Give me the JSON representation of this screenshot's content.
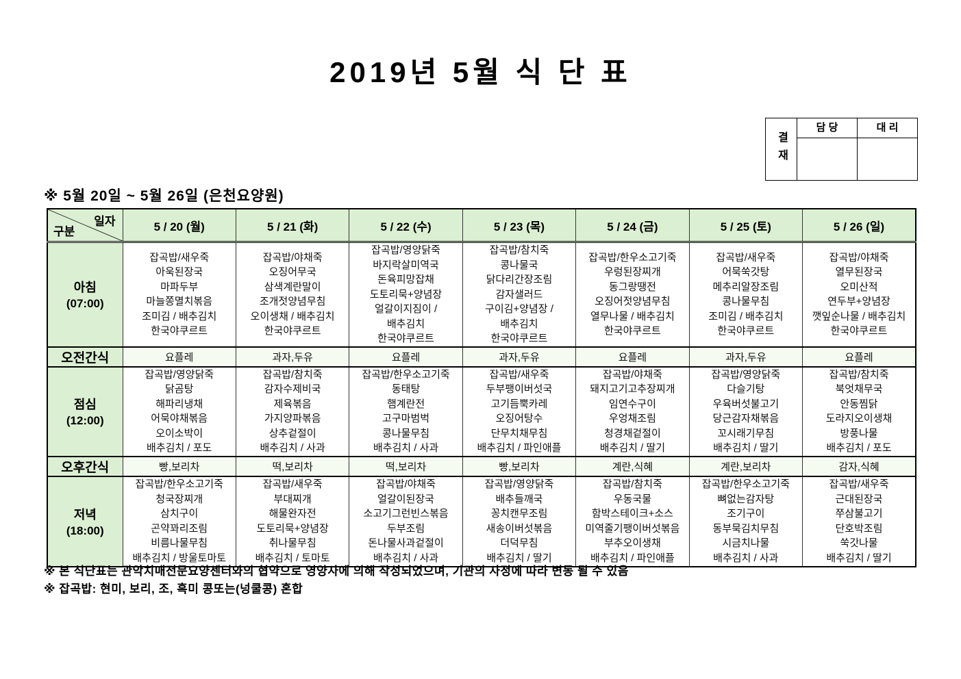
{
  "title": "2019년 5월 식 단 표",
  "approval": {
    "label": "결재",
    "col1": "담 당",
    "col2": "대 리"
  },
  "subtitle": "※ 5월 20일 ~ 5월 26일 (은천요양원)",
  "table": {
    "corner": {
      "top": "일자",
      "bottom": "구분"
    },
    "days": [
      "5 / 20 (월)",
      "5 / 21 (화)",
      "5 / 22 (수)",
      "5 / 23 (목)",
      "5 / 24 (금)",
      "5 / 25 (토)",
      "5 / 26 (일)"
    ],
    "rows": [
      {
        "id": "breakfast",
        "label": "아침",
        "time": "(07:00)",
        "type": "meal",
        "cells": [
          [
            "잡곡밥/새우죽",
            "아욱된장국",
            "마파두부",
            "마늘쫑멸치볶음",
            "조미김 / 배추김치",
            "한국야쿠르트"
          ],
          [
            "잡곡밥/야채죽",
            "오징어무국",
            "삼색계란말이",
            "조개젓양념무침",
            "오이생채 / 배추김치",
            "한국야쿠르트"
          ],
          [
            "잡곡밥/영양닭죽",
            "바지락살미역국",
            "돈육피망잡채",
            "도토리묵+양념장",
            "얼갈이지짐이 /",
            "배추김치",
            "한국야쿠르트"
          ],
          [
            "잡곡밥/참치죽",
            "콩나물국",
            "닭다리간장조림",
            "감자샐러드",
            "구이김+양념장 /",
            "배추김치",
            "한국야쿠르트"
          ],
          [
            "잡곡밥/한우소고기죽",
            "우렁된장찌개",
            "동그랑땡전",
            "오징어젓양념무침",
            "열무나물 / 배추김치",
            "한국야쿠르트"
          ],
          [
            "잡곡밥/새우죽",
            "어묵쑥갓탕",
            "메추리알장조림",
            "콩나물무침",
            "조미김 / 배추김치",
            "한국야쿠르트"
          ],
          [
            "잡곡밥/야채죽",
            "열무된장국",
            "오미산적",
            "연두부+양념장",
            "깻잎순나물 / 배추김치",
            "한국야쿠르트"
          ]
        ]
      },
      {
        "id": "am-snack",
        "label": "오전간식",
        "type": "snack",
        "cells": [
          "요플레",
          "과자,두유",
          "요플레",
          "과자,두유",
          "요플레",
          "과자,두유",
          "요플레"
        ]
      },
      {
        "id": "lunch",
        "label": "점심",
        "time": "(12:00)",
        "type": "meal",
        "cells": [
          [
            "잡곡밥/영양닭죽",
            "닭곰탕",
            "해파리냉채",
            "어묵야채볶음",
            "오이소박이",
            "배추김치 / 포도"
          ],
          [
            "잡곡밥/참치죽",
            "감자수제비국",
            "제육볶음",
            "가지양파볶음",
            "상추겉절이",
            "배추김치 / 사과"
          ],
          [
            "잡곡밥/한우소고기죽",
            "동태탕",
            "햄계란전",
            "고구마범벅",
            "콩나물무침",
            "배추김치 / 사과"
          ],
          [
            "잡곡밥/새우죽",
            "두부팽이버섯국",
            "고기듬뿍카레",
            "오징어탕수",
            "단무치채무침",
            "배추김치 / 파인애플"
          ],
          [
            "잡곡밥/야채죽",
            "돼지고기고추장찌개",
            "임연수구이",
            "우엉채조림",
            "청경채겉절이",
            "배추김치 / 딸기"
          ],
          [
            "잡곡밥/영양닭죽",
            "다슬기탕",
            "우육버섯불고기",
            "당근감자채볶음",
            "꼬시래기무침",
            "배추김치 / 딸기"
          ],
          [
            "잡곡밥/참치죽",
            "북엇채무국",
            "안동찜닭",
            "도라지오이생채",
            "방풍나물",
            "배추김치 / 포도"
          ]
        ]
      },
      {
        "id": "pm-snack",
        "label": "오후간식",
        "type": "snack",
        "cells": [
          "빵,보리차",
          "떡,보리차",
          "떡,보리차",
          "빵,보리차",
          "계란,식혜",
          "계란,보리차",
          "감자,식혜"
        ]
      },
      {
        "id": "dinner",
        "label": "저녁",
        "time": "(18:00)",
        "type": "meal",
        "cells": [
          [
            "잡곡밥/한우소고기죽",
            "청국장찌개",
            "삼치구이",
            "곤약꽈리조림",
            "비름나물무침",
            "배추김치 / 방울토마토"
          ],
          [
            "잡곡밥/새우죽",
            "부대찌개",
            "해물완자전",
            "도토리묵+양념장",
            "취나물무침",
            "배추김치 / 토마토"
          ],
          [
            "잡곡밥/야채죽",
            "얼갈이된장국",
            "소고기그런빈스볶음",
            "두부조림",
            "돈나물사과겉절이",
            "배추김치 / 사과"
          ],
          [
            "잡곡밥/영양닭죽",
            "배추들깨국",
            "꽁치캔무조림",
            "새송이버섯볶음",
            "더덕무침",
            "배추김치 / 딸기"
          ],
          [
            "잡곡밥/참치죽",
            "우동국물",
            "함박스테이크+소스",
            "미역줄기팽이버섯볶음",
            "부추오이생채",
            "배추김치 / 파인애플"
          ],
          [
            "잡곡밥/한우소고기죽",
            "뼈없는감자탕",
            "조기구이",
            "동부묵김치무침",
            "시금치나물",
            "배추김치 / 사과"
          ],
          [
            "잡곡밥/새우죽",
            "근대된장국",
            "쭈삼불고기",
            "단호박조림",
            "쑥갓나물",
            "배추김치 / 딸기"
          ]
        ]
      }
    ]
  },
  "notes": [
    "※ 본 식단표는 관악치매전문요양센터와의 협약으로 영양사에 의해 작성되었으며, 기관의 사정에 따라 변동 될 수 있음",
    "※ 잡곡밥: 현미, 보리, 조, 흑미 콩또는(넝쿨콩) 혼합"
  ],
  "colors": {
    "header_green": "#dbf0d2",
    "snack_tint": "#f5fbf1",
    "grid": "#333333"
  }
}
